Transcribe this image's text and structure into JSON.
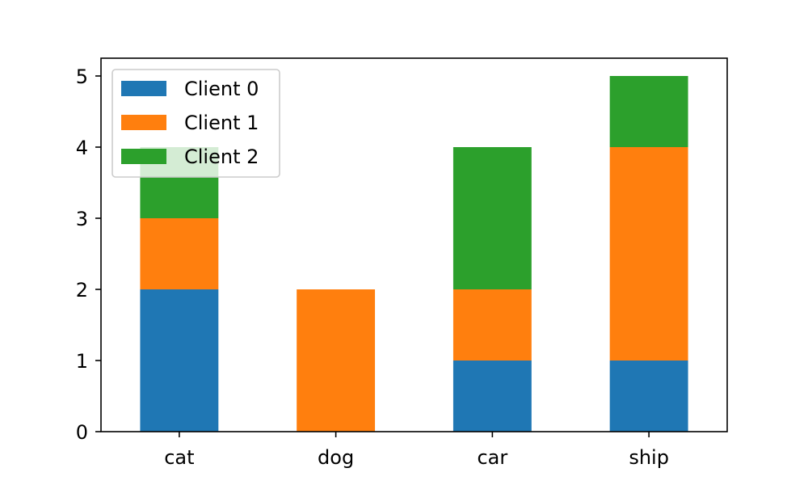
{
  "chart_data": {
    "type": "bar",
    "stacked": true,
    "categories": [
      "cat",
      "dog",
      "car",
      "ship"
    ],
    "series": [
      {
        "name": "Client 0",
        "values": [
          2,
          0,
          1,
          1
        ],
        "color": "#1f77b4"
      },
      {
        "name": "Client 1",
        "values": [
          1,
          2,
          1,
          3
        ],
        "color": "#ff7f0e"
      },
      {
        "name": "Client 2",
        "values": [
          1,
          0,
          2,
          1
        ],
        "color": "#2ca02c"
      }
    ],
    "ylim": [
      0,
      5.25
    ],
    "yticks": [
      "0",
      "1",
      "2",
      "3",
      "4",
      "5"
    ],
    "legend_position": "top-left",
    "grid": false
  }
}
